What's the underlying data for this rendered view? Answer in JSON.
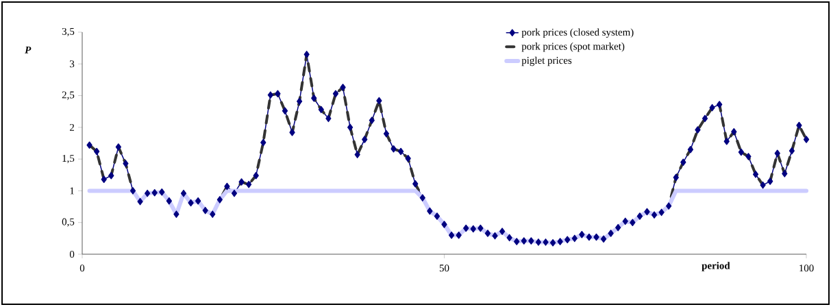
{
  "chart_data": {
    "type": "line",
    "xlabel": "period",
    "ylabel": "P",
    "x": [
      1,
      2,
      3,
      4,
      5,
      6,
      7,
      8,
      9,
      10,
      11,
      12,
      13,
      14,
      15,
      16,
      17,
      18,
      19,
      20,
      21,
      22,
      23,
      24,
      25,
      26,
      27,
      28,
      29,
      30,
      31,
      32,
      33,
      34,
      35,
      36,
      37,
      38,
      39,
      40,
      41,
      42,
      43,
      44,
      45,
      46,
      47,
      48,
      49,
      50,
      51,
      52,
      53,
      54,
      55,
      56,
      57,
      58,
      59,
      60,
      61,
      62,
      63,
      64,
      65,
      66,
      67,
      68,
      69,
      70,
      71,
      72,
      73,
      74,
      75,
      76,
      77,
      78,
      79,
      80,
      81,
      82,
      83,
      84,
      85,
      86,
      87,
      88,
      89,
      90,
      91,
      92,
      93,
      94,
      95,
      96,
      97,
      98,
      99,
      100
    ],
    "series": [
      {
        "name": "pork prices (closed system)",
        "color": "#000080",
        "marker": "diamond",
        "line_style": "solid",
        "values": [
          1.72,
          1.62,
          1.18,
          1.24,
          1.69,
          1.43,
          1.0,
          0.83,
          0.96,
          0.97,
          0.98,
          0.84,
          0.63,
          0.96,
          0.81,
          0.84,
          0.69,
          0.63,
          0.86,
          1.07,
          0.96,
          1.14,
          1.1,
          1.24,
          1.76,
          2.51,
          2.53,
          2.26,
          1.92,
          2.41,
          3.15,
          2.46,
          2.28,
          2.14,
          2.53,
          2.63,
          2.0,
          1.57,
          1.81,
          2.11,
          2.42,
          1.9,
          1.66,
          1.62,
          1.51,
          1.11,
          0.89,
          0.68,
          0.6,
          0.47,
          0.3,
          0.3,
          0.41,
          0.4,
          0.41,
          0.33,
          0.29,
          0.36,
          0.26,
          0.2,
          0.21,
          0.21,
          0.19,
          0.19,
          0.18,
          0.2,
          0.23,
          0.25,
          0.31,
          0.27,
          0.27,
          0.24,
          0.33,
          0.42,
          0.52,
          0.5,
          0.6,
          0.67,
          0.62,
          0.66,
          0.76,
          1.21,
          1.45,
          1.65,
          1.96,
          2.14,
          2.31,
          2.36,
          1.78,
          1.93,
          1.61,
          1.54,
          1.26,
          1.09,
          1.15,
          1.59,
          1.27,
          1.63,
          2.03,
          1.81
        ]
      },
      {
        "name": "pork prices (spot market)",
        "color": "#333333",
        "marker": "none",
        "line_style": "dashed",
        "values": [
          1.72,
          1.62,
          1.18,
          1.24,
          1.69,
          1.43,
          1.0,
          0.83,
          0.96,
          0.97,
          0.98,
          0.84,
          0.63,
          0.96,
          0.81,
          0.84,
          0.69,
          0.63,
          0.86,
          1.07,
          0.96,
          1.14,
          1.1,
          1.24,
          1.76,
          2.51,
          2.53,
          2.26,
          1.92,
          2.41,
          3.15,
          2.46,
          2.28,
          2.14,
          2.53,
          2.63,
          2.0,
          1.57,
          1.81,
          2.11,
          2.42,
          1.9,
          1.66,
          1.62,
          1.51,
          1.11,
          0.89,
          0.68,
          0.6,
          0.47,
          0.3,
          0.3,
          0.41,
          0.4,
          0.41,
          0.33,
          0.29,
          0.36,
          0.26,
          0.2,
          0.21,
          0.21,
          0.19,
          0.19,
          0.18,
          0.2,
          0.23,
          0.25,
          0.31,
          0.27,
          0.27,
          0.24,
          0.33,
          0.42,
          0.52,
          0.5,
          0.6,
          0.67,
          0.62,
          0.66,
          0.76,
          1.21,
          1.45,
          1.65,
          1.96,
          2.14,
          2.31,
          2.36,
          1.78,
          1.93,
          1.61,
          1.54,
          1.26,
          1.09,
          1.15,
          1.59,
          1.27,
          1.63,
          2.03,
          1.81
        ]
      },
      {
        "name": "piglet prices",
        "color": "#ccccff",
        "marker": "none",
        "line_style": "solid",
        "values": [
          1,
          1,
          1,
          1,
          1,
          1,
          1.0,
          0.83,
          0.96,
          0.97,
          0.98,
          0.84,
          0.63,
          0.96,
          0.81,
          0.84,
          0.69,
          0.63,
          0.86,
          1,
          1,
          1,
          1,
          1,
          1,
          1,
          1,
          1,
          1,
          1,
          1,
          1,
          1,
          1,
          1,
          1,
          1,
          1,
          1,
          1,
          1,
          1,
          1,
          1,
          1,
          1,
          0.89,
          0.68,
          0.6,
          0.47,
          0.3,
          0.3,
          0.41,
          0.4,
          0.41,
          0.33,
          0.29,
          0.36,
          0.26,
          0.2,
          0.21,
          0.21,
          0.19,
          0.19,
          0.18,
          0.2,
          0.23,
          0.25,
          0.31,
          0.27,
          0.27,
          0.24,
          0.33,
          0.42,
          0.52,
          0.5,
          0.6,
          0.67,
          0.62,
          0.66,
          0.76,
          1,
          1,
          1,
          1,
          1,
          1,
          1,
          1,
          1,
          1,
          1,
          1,
          1,
          1,
          1,
          1,
          1,
          1,
          1
        ]
      }
    ],
    "xlim": [
      0,
      100
    ],
    "xticks": [
      0,
      50,
      100
    ],
    "ylim": [
      0,
      3.5
    ],
    "yticks": [
      0,
      {
        "value": 0.5,
        "label": "0,5"
      },
      1,
      {
        "value": 1.5,
        "label": "1,5"
      },
      2,
      {
        "value": 2.5,
        "label": "2,5"
      },
      3,
      {
        "value": 3.5,
        "label": "3,5"
      }
    ],
    "grid": false,
    "legend": "top right"
  }
}
